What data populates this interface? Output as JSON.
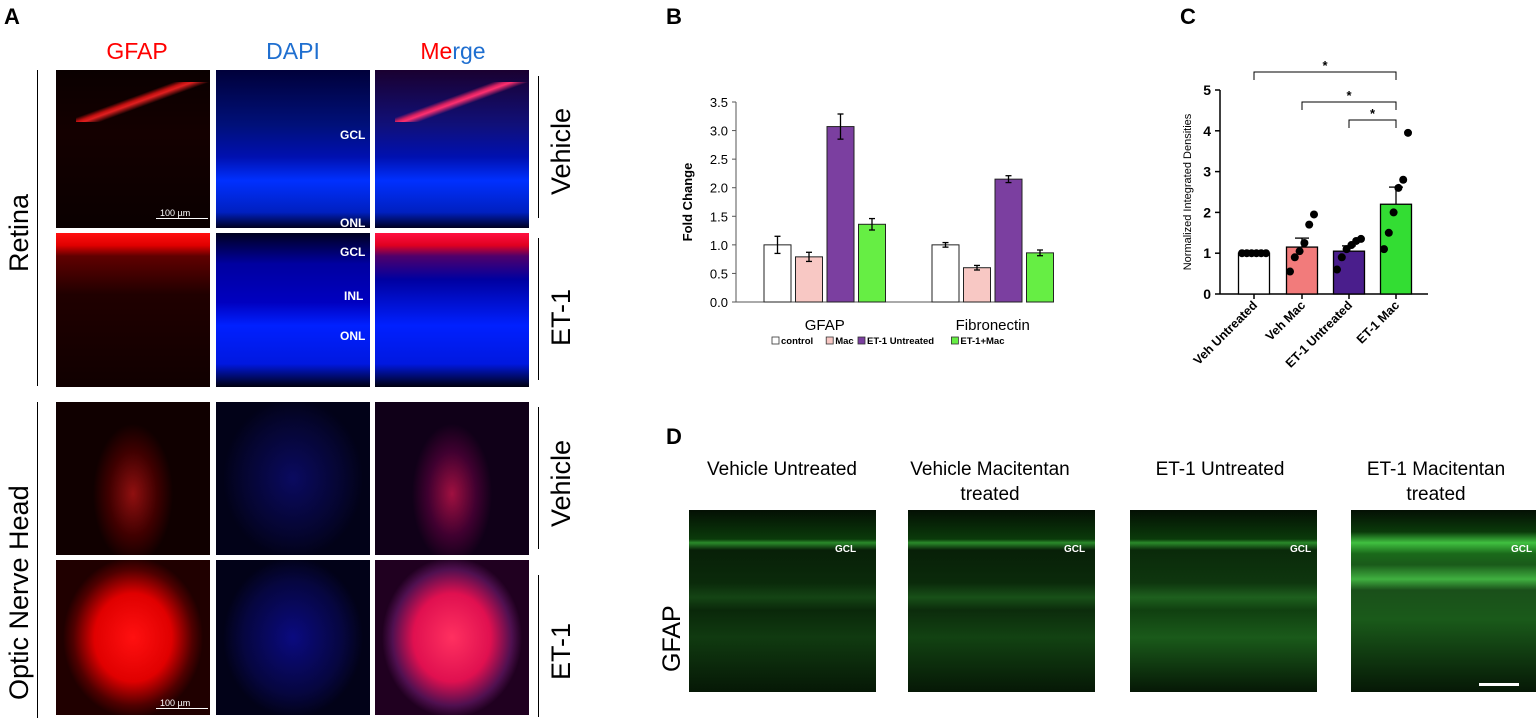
{
  "panel_a": {
    "letter": "A",
    "column_headers": {
      "gfap": "GFAP",
      "dapi": "DAPI",
      "merge_red": "Me",
      "merge_blue": "rge"
    },
    "row_groups": [
      "Retina",
      "Optic Nerve Head"
    ],
    "row_conditions": [
      "Vehicle",
      "ET-1",
      "Vehicle",
      "ET-1"
    ],
    "layer_labels": {
      "gcl": "GCL",
      "inl": "INL",
      "onl": "ONL"
    },
    "scale_bar": "100 µm",
    "colors": {
      "gfap": "#ff0000",
      "dapi": "#0000ff"
    }
  },
  "panel_b": {
    "letter": "B",
    "legend": [
      "control",
      "Mac",
      "ET-1 Untreated",
      "ET-1+Mac"
    ]
  },
  "panel_c": {
    "letter": "C",
    "significance": [
      "*",
      "*",
      "*"
    ]
  },
  "panel_d": {
    "letter": "D",
    "headers": [
      [
        "Vehicle Untreated",
        ""
      ],
      [
        "Vehicle Macitentan",
        "treated"
      ],
      [
        "ET-1 Untreated",
        ""
      ],
      [
        "ET-1 Macitentan",
        "treated"
      ]
    ],
    "row_label": "GFAP",
    "layer_label": "GCL"
  },
  "chart_data": [
    {
      "type": "bar",
      "panel": "B",
      "categories": [
        "GFAP",
        "Fibronectin"
      ],
      "ylabel": "Fold Change",
      "ylim": [
        0,
        3.5
      ],
      "yticks": [
        "0.0",
        "0.5",
        "1.0",
        "1.5",
        "2.0",
        "2.5",
        "3.0",
        "3.5"
      ],
      "series": [
        {
          "name": "control",
          "values": [
            1.0,
            1.0
          ],
          "errors": [
            0.15,
            0.04
          ],
          "color": "#ffffff"
        },
        {
          "name": "Mac",
          "values": [
            0.79,
            0.6
          ],
          "errors": [
            0.08,
            0.04
          ],
          "color": "#f8c8c4"
        },
        {
          "name": "ET-1 Untreated",
          "values": [
            3.07,
            2.15
          ],
          "errors": [
            0.22,
            0.06
          ],
          "color": "#7b3fa0"
        },
        {
          "name": "ET-1+Mac",
          "values": [
            1.36,
            0.86
          ],
          "errors": [
            0.1,
            0.05
          ],
          "color": "#66ee44"
        }
      ]
    },
    {
      "type": "bar",
      "panel": "C",
      "categories": [
        "Veh Untreated",
        "Veh Mac",
        "ET-1 Untreated",
        "ET-1 Mac"
      ],
      "ylabel": "Normalized Integrated Densities",
      "ylim": [
        0,
        5
      ],
      "yticks": [
        "0",
        "1",
        "2",
        "3",
        "4",
        "5"
      ],
      "values": [
        1.0,
        1.15,
        1.05,
        2.2
      ],
      "errors": [
        0.0,
        0.22,
        0.13,
        0.42
      ],
      "colors": [
        "#ffffff",
        "#f27b7b",
        "#4a1e8c",
        "#33dd33"
      ],
      "points": [
        [
          1,
          1,
          1,
          1,
          1,
          1
        ],
        [
          0.55,
          0.9,
          1.05,
          1.25,
          1.7,
          1.95
        ],
        [
          0.6,
          0.9,
          1.1,
          1.2,
          1.3,
          1.35
        ],
        [
          1.1,
          1.5,
          2.0,
          2.6,
          2.8,
          3.95
        ]
      ],
      "comparisons": [
        [
          0,
          3
        ],
        [
          1,
          3
        ],
        [
          2,
          3
        ]
      ]
    }
  ]
}
